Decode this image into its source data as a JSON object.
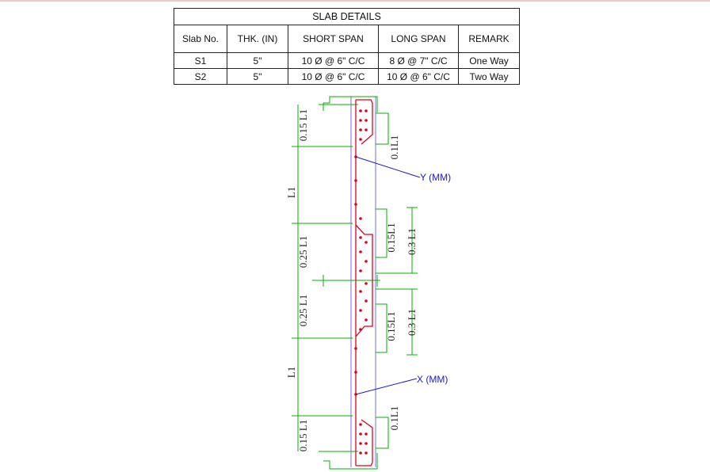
{
  "table": {
    "title": "SLAB DETAILS",
    "headers": [
      "Slab No.",
      "THK. (IN)",
      "SHORT SPAN",
      "LONG SPAN",
      "REMARK"
    ],
    "rows": [
      [
        "S1",
        "5\"",
        "10 Ø @ 6\" C/C",
        "8 Ø @ 7\" C/C",
        "One Way"
      ],
      [
        "S2",
        "5\"",
        "10 Ø @ 6\" C/C",
        "10 Ø @ 6\" C/C",
        "Two Way"
      ]
    ]
  },
  "dimensions": {
    "left": {
      "top_015": "0.15 L1",
      "top_span": "L1",
      "mid_upper": "0.25 L1",
      "mid_lower": "0.25 L1",
      "bottom_span": "L1",
      "bottom_015": "0.15 L1"
    },
    "right": {
      "top_01": "0.1L1",
      "mid1_015": "0.15L1",
      "mid1_03": "0.3 L1",
      "mid2_015": "0.15L1",
      "mid2_03": "0.3 L1",
      "bottom_01": "0.1L1"
    }
  },
  "labels": {
    "y_mm": "Y (MM)",
    "x_mm": "X (MM)"
  },
  "colors": {
    "rebar": "#e0001b",
    "dimension": "#00b000",
    "concrete_edge": "#7070e0",
    "leader": "#1a1acc",
    "text": "#222222"
  }
}
